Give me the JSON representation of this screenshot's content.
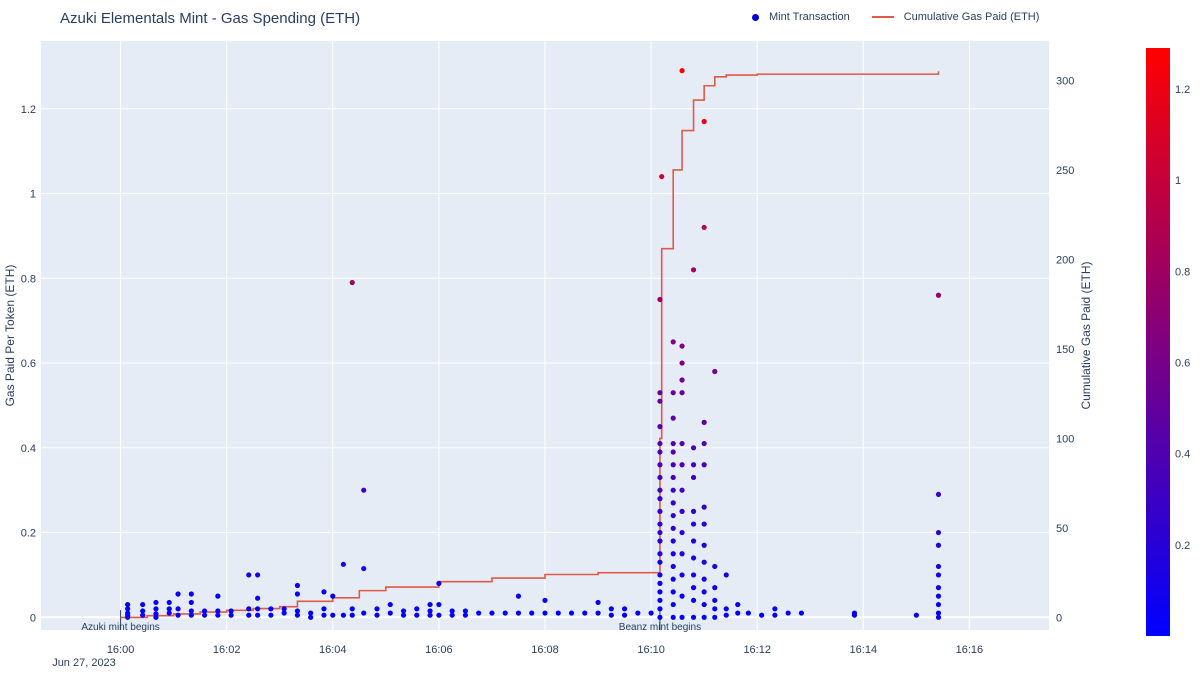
{
  "chart_data": {
    "type": "scatter",
    "title": "Azuki Elementals Mint - Gas Spending (ETH)",
    "xlabel": "",
    "ylabel": "Gas Paid Per Token (ETH)",
    "y2label": "Cumulative Gas Paid (ETH)",
    "x_range": [
      "16:00",
      "16:16"
    ],
    "x_ticks": [
      "16:00",
      "16:02",
      "16:04",
      "16:06",
      "16:08",
      "16:10",
      "16:12",
      "16:14",
      "16:16"
    ],
    "x_date_label": "Jun 27, 2023",
    "ylim": [
      -0.03,
      1.36
    ],
    "y_ticks": [
      "0",
      "0.2",
      "0.4",
      "0.6",
      "0.8",
      "1",
      "1.2"
    ],
    "y2lim": [
      -7,
      322
    ],
    "y2_ticks": [
      "0",
      "50",
      "100",
      "150",
      "200",
      "250",
      "300"
    ],
    "colorbar": {
      "min": 0,
      "max": 1.29,
      "ticks": [
        "0.2",
        "0.4",
        "0.6",
        "0.8",
        "1",
        "1.2"
      ],
      "colors": [
        "#0000ff",
        "#ff0000"
      ]
    },
    "grid": true,
    "legend_position": "top-right",
    "annotations": [
      {
        "text": "Azuki mint begins",
        "x": "16:00:00"
      },
      {
        "text": "Beanz mint begins",
        "x": "16:10:10"
      }
    ],
    "series": [
      {
        "name": "Mint Transaction",
        "type": "scatter",
        "points": [
          [
            "16:00:08",
            0.03
          ],
          [
            "16:00:08",
            0.02
          ],
          [
            "16:00:08",
            0.01
          ],
          [
            "16:00:08",
            0.005
          ],
          [
            "16:00:08",
            0.0
          ],
          [
            "16:00:25",
            0.03
          ],
          [
            "16:00:25",
            0.015
          ],
          [
            "16:00:25",
            0.005
          ],
          [
            "16:00:40",
            0.035
          ],
          [
            "16:00:40",
            0.02
          ],
          [
            "16:00:40",
            0.008
          ],
          [
            "16:00:40",
            0.0
          ],
          [
            "16:00:55",
            0.035
          ],
          [
            "16:00:55",
            0.02
          ],
          [
            "16:00:55",
            0.01
          ],
          [
            "16:01:05",
            0.055
          ],
          [
            "16:01:05",
            0.02
          ],
          [
            "16:01:05",
            0.005
          ],
          [
            "16:01:20",
            0.055
          ],
          [
            "16:01:20",
            0.035
          ],
          [
            "16:01:20",
            0.015
          ],
          [
            "16:01:20",
            0.005
          ],
          [
            "16:01:35",
            0.015
          ],
          [
            "16:01:35",
            0.005
          ],
          [
            "16:01:50",
            0.05
          ],
          [
            "16:01:50",
            0.015
          ],
          [
            "16:01:50",
            0.005
          ],
          [
            "16:02:05",
            0.015
          ],
          [
            "16:02:05",
            0.005
          ],
          [
            "16:02:25",
            0.1
          ],
          [
            "16:02:25",
            0.02
          ],
          [
            "16:02:25",
            0.005
          ],
          [
            "16:02:35",
            0.1
          ],
          [
            "16:02:35",
            0.045
          ],
          [
            "16:02:35",
            0.02
          ],
          [
            "16:02:35",
            0.005
          ],
          [
            "16:02:50",
            0.02
          ],
          [
            "16:02:50",
            0.005
          ],
          [
            "16:03:05",
            0.02
          ],
          [
            "16:03:05",
            0.01
          ],
          [
            "16:03:20",
            0.075
          ],
          [
            "16:03:20",
            0.055
          ],
          [
            "16:03:20",
            0.015
          ],
          [
            "16:03:20",
            0.005
          ],
          [
            "16:03:35",
            0.01
          ],
          [
            "16:03:35",
            0.0
          ],
          [
            "16:03:50",
            0.06
          ],
          [
            "16:03:50",
            0.02
          ],
          [
            "16:03:50",
            0.005
          ],
          [
            "16:04:00",
            0.05
          ],
          [
            "16:04:00",
            0.005
          ],
          [
            "16:04:12",
            0.125
          ],
          [
            "16:04:12",
            0.005
          ],
          [
            "16:04:22",
            0.79
          ],
          [
            "16:04:22",
            0.02
          ],
          [
            "16:04:22",
            0.005
          ],
          [
            "16:04:35",
            0.3
          ],
          [
            "16:04:35",
            0.115
          ],
          [
            "16:04:35",
            0.01
          ],
          [
            "16:04:50",
            0.02
          ],
          [
            "16:04:50",
            0.005
          ],
          [
            "16:05:05",
            0.03
          ],
          [
            "16:05:05",
            0.01
          ],
          [
            "16:05:20",
            0.015
          ],
          [
            "16:05:20",
            0.005
          ],
          [
            "16:05:35",
            0.02
          ],
          [
            "16:05:35",
            0.005
          ],
          [
            "16:05:50",
            0.03
          ],
          [
            "16:05:50",
            0.015
          ],
          [
            "16:05:50",
            0.005
          ],
          [
            "16:06:00",
            0.08
          ],
          [
            "16:06:00",
            0.03
          ],
          [
            "16:06:00",
            0.005
          ],
          [
            "16:06:15",
            0.015
          ],
          [
            "16:06:15",
            0.005
          ],
          [
            "16:06:30",
            0.015
          ],
          [
            "16:06:30",
            0.005
          ],
          [
            "16:06:45",
            0.01
          ],
          [
            "16:07:00",
            0.01
          ],
          [
            "16:07:15",
            0.01
          ],
          [
            "16:07:30",
            0.05
          ],
          [
            "16:07:30",
            0.01
          ],
          [
            "16:07:45",
            0.01
          ],
          [
            "16:08:00",
            0.04
          ],
          [
            "16:08:00",
            0.01
          ],
          [
            "16:08:15",
            0.01
          ],
          [
            "16:08:30",
            0.01
          ],
          [
            "16:08:45",
            0.01
          ],
          [
            "16:09:00",
            0.035
          ],
          [
            "16:09:00",
            0.01
          ],
          [
            "16:09:15",
            0.02
          ],
          [
            "16:09:15",
            0.005
          ],
          [
            "16:09:30",
            0.02
          ],
          [
            "16:09:30",
            0.005
          ],
          [
            "16:09:45",
            0.01
          ],
          [
            "16:10:00",
            0.01
          ],
          [
            "16:10:10",
            0.75
          ],
          [
            "16:10:10",
            0.53
          ],
          [
            "16:10:10",
            0.51
          ],
          [
            "16:10:10",
            0.45
          ],
          [
            "16:10:10",
            0.41
          ],
          [
            "16:10:10",
            0.39
          ],
          [
            "16:10:10",
            0.36
          ],
          [
            "16:10:10",
            0.33
          ],
          [
            "16:10:10",
            0.3
          ],
          [
            "16:10:10",
            0.28
          ],
          [
            "16:10:10",
            0.25
          ],
          [
            "16:10:10",
            0.22
          ],
          [
            "16:10:10",
            0.2
          ],
          [
            "16:10:10",
            0.18
          ],
          [
            "16:10:10",
            0.15
          ],
          [
            "16:10:10",
            0.13
          ],
          [
            "16:10:10",
            0.1
          ],
          [
            "16:10:10",
            0.08
          ],
          [
            "16:10:10",
            0.06
          ],
          [
            "16:10:10",
            0.04
          ],
          [
            "16:10:10",
            0.02
          ],
          [
            "16:10:10",
            0.0
          ],
          [
            "16:10:12",
            1.04
          ],
          [
            "16:10:25",
            0.65
          ],
          [
            "16:10:25",
            0.53
          ],
          [
            "16:10:25",
            0.47
          ],
          [
            "16:10:25",
            0.41
          ],
          [
            "16:10:25",
            0.39
          ],
          [
            "16:10:25",
            0.36
          ],
          [
            "16:10:25",
            0.33
          ],
          [
            "16:10:25",
            0.3
          ],
          [
            "16:10:25",
            0.27
          ],
          [
            "16:10:25",
            0.24
          ],
          [
            "16:10:25",
            0.21
          ],
          [
            "16:10:25",
            0.18
          ],
          [
            "16:10:25",
            0.15
          ],
          [
            "16:10:25",
            0.12
          ],
          [
            "16:10:25",
            0.09
          ],
          [
            "16:10:25",
            0.06
          ],
          [
            "16:10:25",
            0.03
          ],
          [
            "16:10:25",
            0.0
          ],
          [
            "16:10:35",
            1.29
          ],
          [
            "16:10:35",
            0.64
          ],
          [
            "16:10:35",
            0.6
          ],
          [
            "16:10:35",
            0.56
          ],
          [
            "16:10:35",
            0.53
          ],
          [
            "16:10:35",
            0.41
          ],
          [
            "16:10:35",
            0.36
          ],
          [
            "16:10:35",
            0.3
          ],
          [
            "16:10:35",
            0.25
          ],
          [
            "16:10:35",
            0.2
          ],
          [
            "16:10:35",
            0.15
          ],
          [
            "16:10:35",
            0.1
          ],
          [
            "16:10:35",
            0.05
          ],
          [
            "16:10:35",
            0.0
          ],
          [
            "16:10:48",
            0.82
          ],
          [
            "16:10:48",
            0.4
          ],
          [
            "16:10:48",
            0.36
          ],
          [
            "16:10:48",
            0.33
          ],
          [
            "16:10:48",
            0.25
          ],
          [
            "16:10:48",
            0.22
          ],
          [
            "16:10:48",
            0.18
          ],
          [
            "16:10:48",
            0.14
          ],
          [
            "16:10:48",
            0.1
          ],
          [
            "16:10:48",
            0.07
          ],
          [
            "16:10:48",
            0.04
          ],
          [
            "16:10:48",
            0.0
          ],
          [
            "16:11:00",
            1.17
          ],
          [
            "16:11:00",
            0.92
          ],
          [
            "16:11:00",
            0.46
          ],
          [
            "16:11:00",
            0.41
          ],
          [
            "16:11:00",
            0.36
          ],
          [
            "16:11:00",
            0.26
          ],
          [
            "16:11:00",
            0.22
          ],
          [
            "16:11:00",
            0.17
          ],
          [
            "16:11:00",
            0.13
          ],
          [
            "16:11:00",
            0.09
          ],
          [
            "16:11:00",
            0.06
          ],
          [
            "16:11:00",
            0.03
          ],
          [
            "16:11:00",
            0.0
          ],
          [
            "16:11:12",
            0.58
          ],
          [
            "16:11:12",
            0.12
          ],
          [
            "16:11:12",
            0.07
          ],
          [
            "16:11:12",
            0.04
          ],
          [
            "16:11:12",
            0.02
          ],
          [
            "16:11:12",
            0.0
          ],
          [
            "16:11:25",
            0.1
          ],
          [
            "16:11:25",
            0.02
          ],
          [
            "16:11:25",
            0.005
          ],
          [
            "16:11:38",
            0.03
          ],
          [
            "16:11:38",
            0.01
          ],
          [
            "16:11:50",
            0.01
          ],
          [
            "16:12:05",
            0.005
          ],
          [
            "16:12:20",
            0.02
          ],
          [
            "16:12:20",
            0.005
          ],
          [
            "16:12:35",
            0.01
          ],
          [
            "16:12:50",
            0.01
          ],
          [
            "16:13:50",
            0.01
          ],
          [
            "16:13:50",
            0.005
          ],
          [
            "16:15:00",
            0.005
          ],
          [
            "16:15:25",
            0.76
          ],
          [
            "16:15:25",
            0.29
          ],
          [
            "16:15:25",
            0.2
          ],
          [
            "16:15:25",
            0.17
          ],
          [
            "16:15:25",
            0.12
          ],
          [
            "16:15:25",
            0.1
          ],
          [
            "16:15:25",
            0.07
          ],
          [
            "16:15:25",
            0.05
          ],
          [
            "16:15:25",
            0.03
          ],
          [
            "16:15:25",
            0.01
          ],
          [
            "16:15:25",
            0.0
          ]
        ]
      },
      {
        "name": "Cumulative Gas Paid (ETH)",
        "type": "line",
        "shape": "step",
        "points": [
          [
            "16:00:00",
            0
          ],
          [
            "16:00:30",
            1
          ],
          [
            "16:01:00",
            2
          ],
          [
            "16:01:30",
            3
          ],
          [
            "16:02:00",
            4
          ],
          [
            "16:02:30",
            5
          ],
          [
            "16:03:00",
            6
          ],
          [
            "16:03:20",
            9
          ],
          [
            "16:04:00",
            11
          ],
          [
            "16:04:30",
            15
          ],
          [
            "16:05:00",
            17
          ],
          [
            "16:06:00",
            20
          ],
          [
            "16:07:00",
            22
          ],
          [
            "16:08:00",
            24
          ],
          [
            "16:09:00",
            25
          ],
          [
            "16:10:10",
            26
          ],
          [
            "16:10:10",
            100
          ],
          [
            "16:10:12",
            206
          ],
          [
            "16:10:25",
            250
          ],
          [
            "16:10:35",
            272
          ],
          [
            "16:10:48",
            289
          ],
          [
            "16:11:00",
            297
          ],
          [
            "16:11:12",
            302
          ],
          [
            "16:11:25",
            303
          ],
          [
            "16:12:00",
            303.5
          ],
          [
            "16:15:25",
            305
          ],
          [
            "16:15:25",
            303.5
          ]
        ]
      }
    ]
  }
}
